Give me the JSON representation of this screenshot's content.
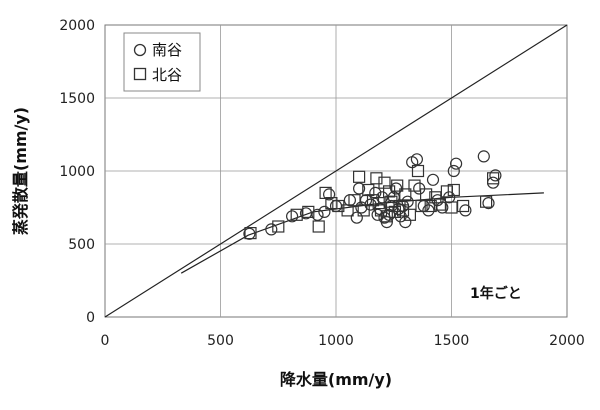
{
  "chart_data": {
    "type": "scatter",
    "xlabel": "降水量(mm/y)",
    "ylabel": "蒸発散量(mm/y)",
    "xlim": [
      0,
      2000
    ],
    "ylim": [
      0,
      2000
    ],
    "x_ticks": [
      "0",
      "500",
      "1000",
      "1500",
      "2000"
    ],
    "y_ticks": [
      "0",
      "500",
      "1000",
      "1500",
      "2000"
    ],
    "grid": true,
    "legend_position": "top-left",
    "annotation": "1年ごと",
    "series": [
      {
        "name": "南谷",
        "marker": "circle",
        "points": [
          [
            625,
            570
          ],
          [
            720,
            600
          ],
          [
            810,
            690
          ],
          [
            870,
            710
          ],
          [
            920,
            700
          ],
          [
            950,
            720
          ],
          [
            970,
            840
          ],
          [
            1000,
            760
          ],
          [
            1060,
            800
          ],
          [
            1090,
            680
          ],
          [
            1100,
            880
          ],
          [
            1110,
            750
          ],
          [
            1130,
            800
          ],
          [
            1150,
            770
          ],
          [
            1170,
            850
          ],
          [
            1180,
            700
          ],
          [
            1190,
            740
          ],
          [
            1200,
            820
          ],
          [
            1210,
            680
          ],
          [
            1220,
            650
          ],
          [
            1230,
            700
          ],
          [
            1240,
            760
          ],
          [
            1250,
            820
          ],
          [
            1260,
            880
          ],
          [
            1270,
            740
          ],
          [
            1280,
            690
          ],
          [
            1290,
            760
          ],
          [
            1300,
            650
          ],
          [
            1310,
            790
          ],
          [
            1330,
            1060
          ],
          [
            1350,
            1080
          ],
          [
            1360,
            880
          ],
          [
            1380,
            760
          ],
          [
            1400,
            730
          ],
          [
            1420,
            940
          ],
          [
            1440,
            800
          ],
          [
            1460,
            750
          ],
          [
            1490,
            820
          ],
          [
            1510,
            1000
          ],
          [
            1520,
            1050
          ],
          [
            1560,
            730
          ],
          [
            1640,
            1100
          ],
          [
            1660,
            780
          ],
          [
            1680,
            920
          ],
          [
            1690,
            970
          ]
        ]
      },
      {
        "name": "北谷",
        "marker": "square",
        "points": [
          [
            630,
            575
          ],
          [
            750,
            620
          ],
          [
            830,
            700
          ],
          [
            880,
            720
          ],
          [
            925,
            620
          ],
          [
            955,
            850
          ],
          [
            980,
            780
          ],
          [
            1010,
            760
          ],
          [
            1050,
            730
          ],
          [
            1080,
            800
          ],
          [
            1100,
            960
          ],
          [
            1120,
            730
          ],
          [
            1140,
            870
          ],
          [
            1160,
            800
          ],
          [
            1175,
            950
          ],
          [
            1185,
            780
          ],
          [
            1195,
            730
          ],
          [
            1210,
            920
          ],
          [
            1220,
            690
          ],
          [
            1230,
            860
          ],
          [
            1240,
            790
          ],
          [
            1255,
            720
          ],
          [
            1265,
            900
          ],
          [
            1275,
            760
          ],
          [
            1290,
            730
          ],
          [
            1300,
            840
          ],
          [
            1320,
            700
          ],
          [
            1340,
            900
          ],
          [
            1355,
            1000
          ],
          [
            1370,
            760
          ],
          [
            1390,
            840
          ],
          [
            1410,
            760
          ],
          [
            1430,
            820
          ],
          [
            1450,
            770
          ],
          [
            1480,
            860
          ],
          [
            1500,
            750
          ],
          [
            1510,
            870
          ],
          [
            1550,
            760
          ],
          [
            1650,
            790
          ],
          [
            1680,
            950
          ]
        ]
      }
    ],
    "reference_lines": [
      {
        "label": "1:1",
        "points": [
          [
            0,
            0
          ],
          [
            2000,
            2000
          ]
        ]
      },
      {
        "label": "trend",
        "points": [
          [
            330,
            300
          ],
          [
            620,
            560
          ],
          [
            900,
            720
          ],
          [
            1200,
            780
          ],
          [
            1500,
            820
          ],
          [
            1900,
            850
          ]
        ]
      }
    ]
  }
}
